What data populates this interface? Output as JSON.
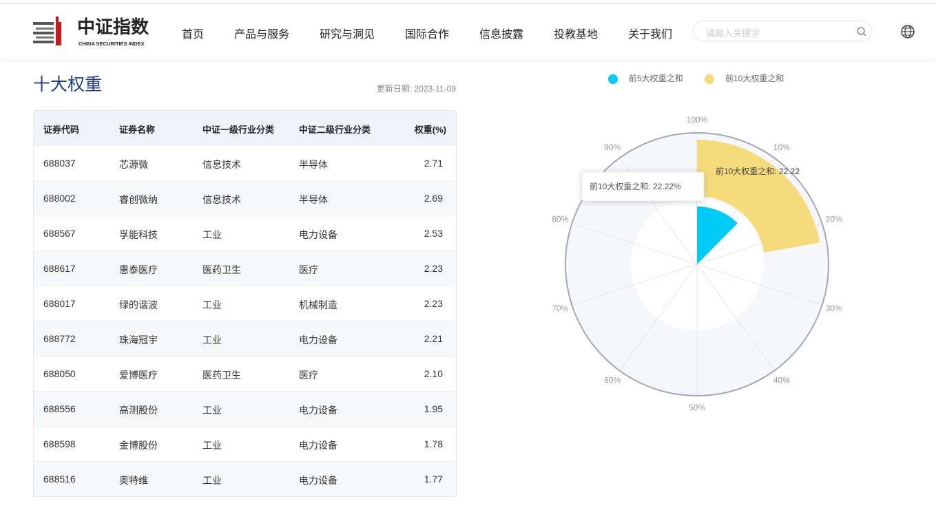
{
  "header": {
    "logo_cn": "中证指数",
    "logo_en": "CHINA SECURITIES INDEX",
    "nav": [
      "首页",
      "产品与服务",
      "研究与洞见",
      "国际合作",
      "信息披露",
      "投教基地",
      "关于我们"
    ],
    "search_placeholder": "请输入关键字"
  },
  "section": {
    "title": "十大权重",
    "update_date": "更新日期: 2023-11-09"
  },
  "table": {
    "columns": [
      "证券代码",
      "证券名称",
      "中证一级行业分类",
      "中证二级行业分类",
      "权重(%)"
    ],
    "rows": [
      [
        "688037",
        "芯源微",
        "信息技术",
        "半导体",
        "2.71"
      ],
      [
        "688002",
        "睿创微纳",
        "信息技术",
        "半导体",
        "2.69"
      ],
      [
        "688567",
        "孚能科技",
        "工业",
        "电力设备",
        "2.53"
      ],
      [
        "688617",
        "惠泰医疗",
        "医药卫生",
        "医疗",
        "2.23"
      ],
      [
        "688017",
        "绿的谐波",
        "工业",
        "机械制造",
        "2.23"
      ],
      [
        "688772",
        "珠海冠宇",
        "工业",
        "电力设备",
        "2.21"
      ],
      [
        "688050",
        "爱博医疗",
        "医药卫生",
        "医疗",
        "2.10"
      ],
      [
        "688556",
        "高测股份",
        "工业",
        "电力设备",
        "1.95"
      ],
      [
        "688598",
        "金博股份",
        "工业",
        "电力设备",
        "1.78"
      ],
      [
        "688516",
        "奥特维",
        "工业",
        "电力设备",
        "1.77"
      ]
    ]
  },
  "chart_data": {
    "type": "polar-bar",
    "legend": "top",
    "series": [
      {
        "name": "前5大权重之和",
        "color": "#00cbf7",
        "values": [
          12.39
        ]
      },
      {
        "name": "前10大权重之和",
        "color": "#f6db7c",
        "values": [
          22.22
        ],
        "value_labels": [
          "前10大权重之和: 22.22"
        ]
      }
    ],
    "xlim": [
      0,
      100
    ],
    "xticks": [
      {
        "value": 100,
        "label": "100%"
      },
      {
        "value": 10,
        "label": "10%"
      },
      {
        "value": 20,
        "label": "20%"
      },
      {
        "value": 30,
        "label": "30%"
      },
      {
        "value": 40,
        "label": "40%"
      },
      {
        "value": 50,
        "label": "50%"
      },
      {
        "value": 60,
        "label": "60%"
      },
      {
        "value": 70,
        "label": "70%"
      },
      {
        "value": 80,
        "label": "80%"
      },
      {
        "value": 90,
        "label": "90%"
      }
    ],
    "tooltip": "前10大权重之和: 22.22%"
  }
}
